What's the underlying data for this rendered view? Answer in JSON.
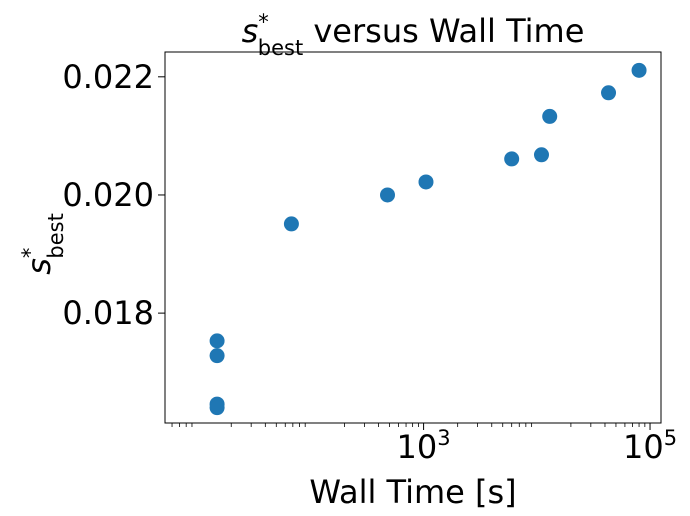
{
  "chart_data": {
    "type": "scatter",
    "title": {
      "symbol": "s",
      "superscript": "*",
      "subscript": "best",
      "rest": " versus Wall Time"
    },
    "xlabel": "Wall Time [s]",
    "ylabel": {
      "symbol": "s",
      "superscript": "*",
      "subscript": "best"
    },
    "x_scale": "log",
    "x_ticks": [
      {
        "value": 1000,
        "base": "10",
        "exp": "3"
      },
      {
        "value": 100000,
        "base": "10",
        "exp": "5"
      }
    ],
    "y_ticks": [
      {
        "value": 0.018,
        "label": "0.018"
      },
      {
        "value": 0.02,
        "label": "0.020"
      },
      {
        "value": 0.022,
        "label": "0.022"
      }
    ],
    "xlim": [
      5.2,
      125000
    ],
    "ylim": [
      0.01614,
      0.02242
    ],
    "grid": false,
    "marker_color": "#1f77b4",
    "points": [
      {
        "x": 15,
        "y": 0.01753
      },
      {
        "x": 15,
        "y": 0.01728
      },
      {
        "x": 15,
        "y": 0.01646
      },
      {
        "x": 15,
        "y": 0.0164
      },
      {
        "x": 68,
        "y": 0.01951
      },
      {
        "x": 480,
        "y": 0.02
      },
      {
        "x": 1050,
        "y": 0.02022
      },
      {
        "x": 6000,
        "y": 0.02061
      },
      {
        "x": 11000,
        "y": 0.02068
      },
      {
        "x": 13000,
        "y": 0.02133
      },
      {
        "x": 43000,
        "y": 0.02173
      },
      {
        "x": 80000,
        "y": 0.02211
      }
    ]
  }
}
